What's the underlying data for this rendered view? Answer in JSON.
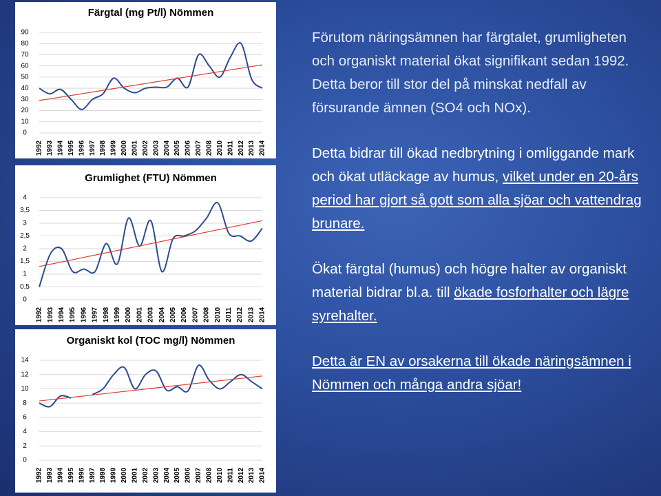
{
  "chart_data": [
    {
      "type": "line",
      "title": "Färgtal (mg Pt/l) Nömmen",
      "categories": [
        "1992",
        "1993",
        "1994",
        "1995",
        "1996",
        "1997",
        "1998",
        "1999",
        "2000",
        "2001",
        "2002",
        "2003",
        "2004",
        "2005",
        "2006",
        "2007",
        "2008",
        "2010",
        "2011",
        "2012",
        "2013",
        "2014"
      ],
      "series": [
        {
          "color": "#2c4c8f",
          "values": [
            40,
            35,
            39,
            30,
            21,
            30,
            35,
            49,
            40,
            36,
            40,
            41,
            41,
            49,
            41,
            70,
            60,
            50,
            68,
            80,
            48,
            40
          ]
        }
      ],
      "trendline": {
        "color": "#e03c31",
        "values": [
          29,
          61
        ]
      },
      "ylim": [
        0,
        90
      ],
      "yticks": [
        0,
        10,
        20,
        30,
        40,
        50,
        60,
        70,
        80,
        90
      ],
      "grid": true
    },
    {
      "type": "line",
      "title": "Grumlighet (FTU) Nömmen",
      "categories": [
        "1992",
        "1993",
        "1994",
        "1995",
        "1996",
        "1997",
        "1998",
        "1999",
        "2000",
        "2001",
        "2003",
        "2004",
        "2005",
        "2006",
        "2007",
        "2008",
        "2010",
        "2011",
        "2012",
        "2013",
        "2014"
      ],
      "series": [
        {
          "color": "#2c4c8f",
          "values": [
            0.5,
            1.8,
            2.0,
            1.1,
            1.2,
            1.1,
            2.2,
            1.4,
            3.2,
            2.1,
            3.1,
            1.1,
            2.4,
            2.5,
            2.7,
            3.2,
            3.8,
            2.6,
            2.5,
            2.3,
            2.8
          ]
        }
      ],
      "trendline": {
        "color": "#e03c31",
        "values": [
          1.3,
          3.1
        ]
      },
      "ylim": [
        0,
        4
      ],
      "yticks": [
        0,
        {
          "value": 0.5,
          "label": "0,5"
        },
        1,
        {
          "value": 1.5,
          "label": "1,5"
        },
        2,
        {
          "value": 2.5,
          "label": "2,5"
        },
        3,
        {
          "value": 3.5,
          "label": "3,5"
        },
        4
      ],
      "grid": true
    },
    {
      "type": "line",
      "title": "Organiskt kol (TOC mg/l) Nömmen",
      "categories": [
        "1992",
        "1993",
        "1994",
        "1995",
        "1996",
        "1997",
        "1998",
        "1999",
        "2000",
        "2001",
        "2002",
        "2003",
        "2004",
        "2005",
        "2006",
        "2007",
        "2008",
        "2010",
        "2011",
        "2012",
        "2013",
        "2014"
      ],
      "series": [
        {
          "color": "#2c4c8f",
          "values": [
            8,
            7.5,
            9,
            8.7,
            null,
            9.2,
            10,
            12,
            13,
            10,
            12,
            12.5,
            9.8,
            10.3,
            9.7,
            13.3,
            11.2,
            10,
            11,
            12,
            11,
            10
          ]
        }
      ],
      "trendline": {
        "color": "#e03c31",
        "values": [
          8.3,
          11.8
        ]
      },
      "ylim": [
        0,
        14
      ],
      "yticks": [
        0,
        2,
        4,
        6,
        8,
        10,
        12,
        14
      ],
      "grid": true
    }
  ],
  "paragraphs": [
    [
      {
        "text": "Förutom näringsämnen har färgtalet, grumligheten och organiskt material ökat signifikant sedan 1992. Detta beror till stor del på minskat nedfall av försurande ämnen (SO4 och NOx).",
        "style": "plain"
      }
    ],
    [
      {
        "text": "Detta bidrar till ökad nedbrytning i omliggande mark och ökat utläckage av humus, ",
        "style": "plain"
      },
      {
        "text": "vilket under en 20-års period har gjort så gott som alla sjöar och vattendrag brunare.",
        "style": "underline"
      }
    ],
    [
      {
        "text": "Ökat färgtal (humus) och högre halter av organiskt material bidrar bl.a. till ",
        "style": "plain"
      },
      {
        "text": "ökade fosforhalter och lägre syrehalter.",
        "style": "underline"
      }
    ],
    [
      {
        "text": "Detta är EN av orsakerna till ökade näringsämnen i Nömmen och många andra sjöar!",
        "style": "underline"
      }
    ]
  ]
}
